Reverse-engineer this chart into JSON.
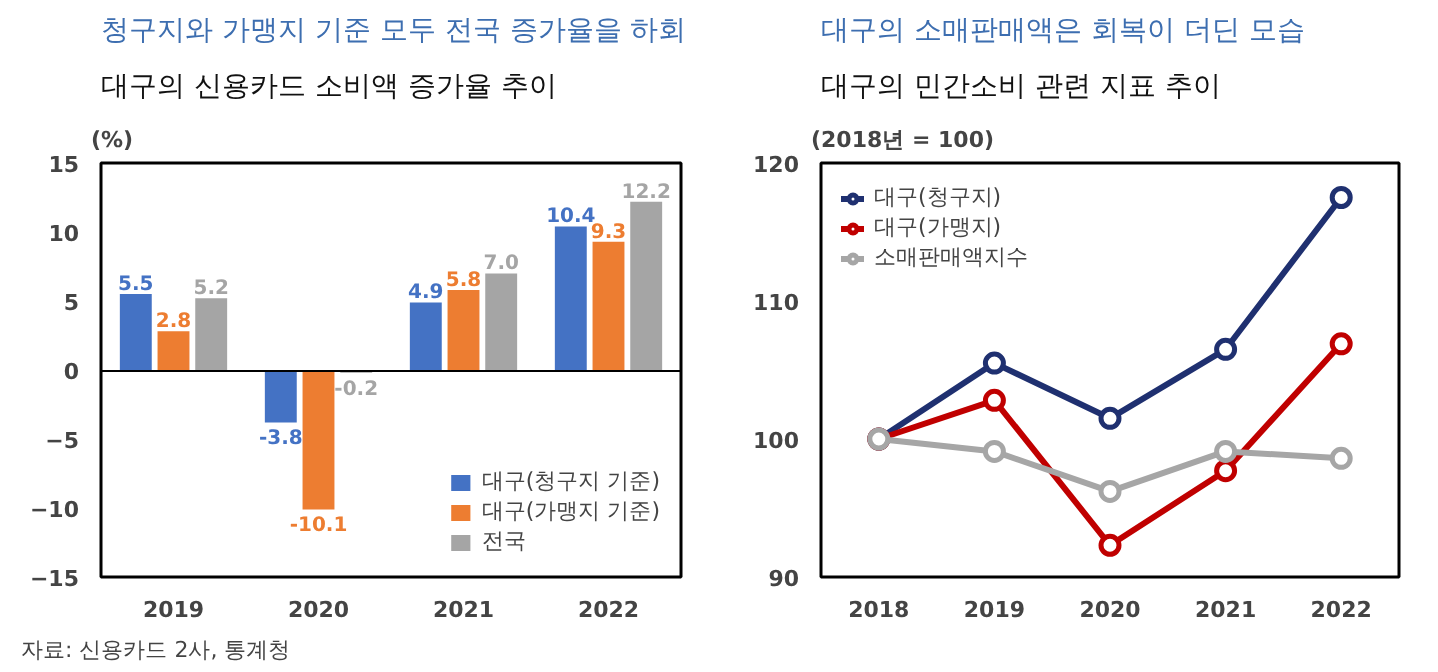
{
  "chart_data": [
    {
      "type": "bar",
      "title": "청구지와 가맹지 기준 모두 전국 증가율을 하회",
      "subtitle": "대구의 신용카드 소비액 증가율 추이",
      "ylabel": "(%)",
      "categories": [
        "2019",
        "2020",
        "2021",
        "2022"
      ],
      "series": [
        {
          "name": "대구(청구지 기준)",
          "color": "#4472c4",
          "values": [
            5.5,
            -3.8,
            4.9,
            10.4
          ],
          "value_labels": [
            "5.5",
            "-3.8",
            "4.9",
            "10.4"
          ]
        },
        {
          "name": "대구(가맹지 기준)",
          "color": "#ed7d31",
          "values": [
            2.8,
            -10.1,
            5.8,
            9.3
          ],
          "value_labels": [
            "2.8",
            "-10.1",
            "5.8",
            "9.3"
          ]
        },
        {
          "name": "전국",
          "color": "#a5a5a5",
          "values": [
            5.2,
            -0.2,
            7.0,
            12.2
          ],
          "value_labels": [
            "5.2",
            "-0.2",
            "7.0",
            "12.2"
          ]
        }
      ],
      "ylim": [
        -15,
        15
      ],
      "yticks": [
        -15,
        -10,
        -5,
        0,
        5,
        10,
        15
      ],
      "ref_lines": [
        {
          "axis": "y",
          "value": 0,
          "color": "#000000"
        }
      ],
      "grid": false,
      "legend": "bottom right",
      "annotations": [
        "자료: 신용카드 2사, 통계청"
      ]
    },
    {
      "type": "line",
      "title": "대구의 소매판매액은 회복이 더딘 모습",
      "subtitle": "대구의 민간소비 관련 지표 추이",
      "ylabel": "(2018년 = 100)",
      "categories": [
        "2018",
        "2019",
        "2020",
        "2021",
        "2022"
      ],
      "series": [
        {
          "name": "대구(청구지)",
          "color": "#1f3070",
          "values": [
            100,
            105.5,
            101.5,
            106.5,
            117.5
          ]
        },
        {
          "name": "대구(가맹지)",
          "color": "#c00000",
          "values": [
            100,
            102.8,
            92.3,
            97.7,
            106.9
          ]
        },
        {
          "name": "소매판매액지수",
          "color": "#a6a6a6",
          "values": [
            100,
            99.1,
            96.2,
            99.1,
            98.6
          ]
        }
      ],
      "ylim": [
        90,
        120
      ],
      "yticks": [
        90,
        100,
        110,
        120
      ],
      "grid": false,
      "legend": "top left",
      "marker": "circle",
      "line_style": "solid"
    }
  ]
}
